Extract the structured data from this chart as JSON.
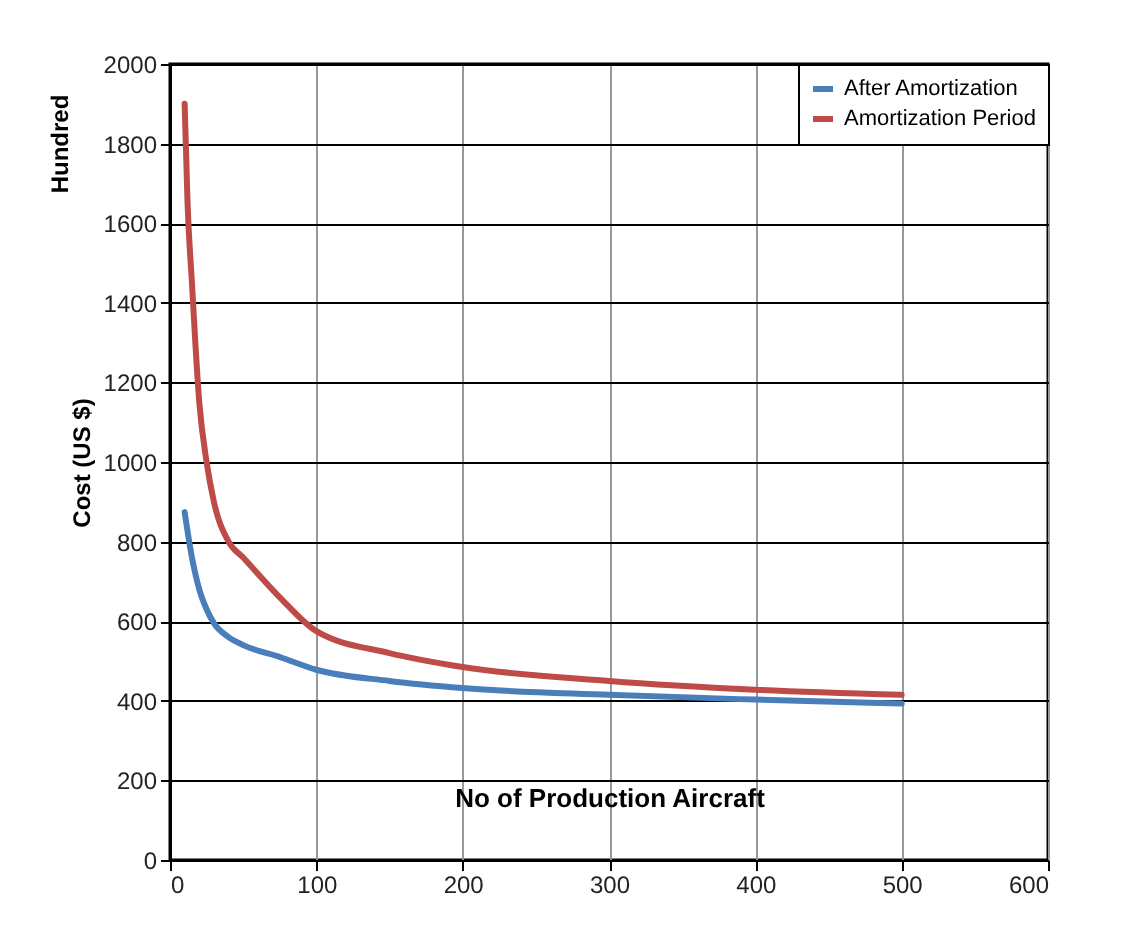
{
  "chart_data": {
    "type": "line",
    "xlabel": "No of Production Aircraft",
    "ylabel": "Cost (US $)",
    "annotations": [
      "Hundred"
    ],
    "xlim": [
      0,
      600
    ],
    "xticks": [
      0,
      100,
      200,
      300,
      400,
      500,
      600
    ],
    "ylim": [
      0,
      2000
    ],
    "yticks": [
      0,
      200,
      400,
      600,
      800,
      1000,
      1200,
      1400,
      1600,
      1800,
      2000
    ],
    "grid": true,
    "legend": "top right",
    "marker": "none",
    "line_style": "solid",
    "series": [
      {
        "name": "After Amortization",
        "color": "#4a7ebb",
        "x": [
          10,
          15,
          20,
          25,
          30,
          40,
          50,
          75,
          100,
          150,
          200,
          300,
          400,
          500
        ],
        "values": [
          874,
          760,
          680,
          630,
          595,
          560,
          540,
          510,
          478,
          450,
          432,
          415,
          403,
          393
        ]
      },
      {
        "name": "Amortization Period",
        "color": "#be4b48",
        "x": [
          10,
          12,
          15,
          20,
          25,
          30,
          40,
          50,
          75,
          100,
          150,
          200,
          300,
          400,
          500
        ],
        "values": [
          1900,
          1650,
          1450,
          1150,
          1000,
          900,
          800,
          760,
          660,
          575,
          520,
          485,
          450,
          428,
          415
        ]
      }
    ]
  }
}
